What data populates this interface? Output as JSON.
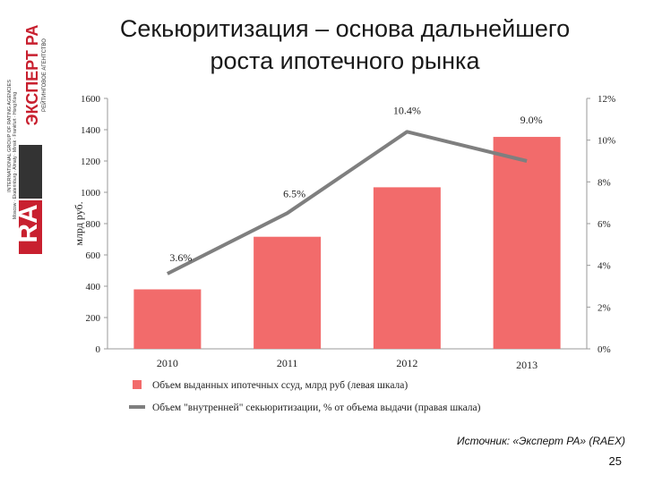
{
  "slide": {
    "title_line1": "Секьюритизация – основа дальнейшего",
    "title_line2": "роста ипотечного рынка",
    "source": "Источник: «Эксперт РА» (RAEX)",
    "page_number": "25"
  },
  "logo": {
    "brand_ra": "RA",
    "brand_name": "ЭКСПЕРТ РА",
    "tagline": "РЕЙТИНГОВОЕ АГЕНТСТВО",
    "group": "INTERNATIONAL GROUP OF RATING AGENCIES",
    "cities": "Moscow · Ekaterinburg · Almaty · Minsk · Frankfurt · Hong Kong",
    "colors": {
      "brand": "#c8202f",
      "dark": "#333333"
    }
  },
  "chart_data": {
    "type": "bar",
    "categories": [
      "2010",
      "2011",
      "2012",
      "2013"
    ],
    "series": [
      {
        "name": "Объем выданных ипотечных ссуд, млрд руб (левая шкала)",
        "type": "bar",
        "axis": "left",
        "values": [
          380,
          716,
          1032,
          1354
        ],
        "color": "#f26b6b"
      },
      {
        "name": "Объем \"внутренней\" секьюритизации, % от объема выдачи (правая шкала)",
        "type": "line",
        "axis": "right",
        "values": [
          3.6,
          6.5,
          10.4,
          9.0
        ],
        "labels": [
          "3.6%",
          "6.5%",
          "10.4%",
          "9.0%"
        ],
        "color": "#7f7f7f"
      }
    ],
    "ylabel": "млрд руб.",
    "ylim": [
      0,
      1600
    ],
    "yticks": [
      "0",
      "200",
      "400",
      "600",
      "800",
      "1000",
      "1200",
      "1400",
      "1600"
    ],
    "y2lim": [
      0,
      12
    ],
    "y2ticks": [
      "0%",
      "2%",
      "4%",
      "6%",
      "8%",
      "10%",
      "12%"
    ],
    "grid": false,
    "legend_position": "bottom"
  }
}
